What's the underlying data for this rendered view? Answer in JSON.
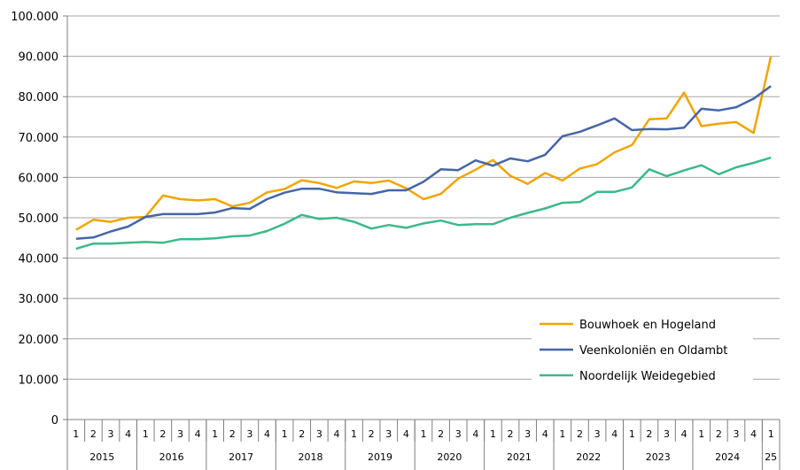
{
  "chart_data": {
    "type": "line",
    "title": "",
    "xlabel": "",
    "ylabel": "",
    "ylim": [
      0,
      100000
    ],
    "yticks": [
      "0",
      "10.000",
      "20.000",
      "30.000",
      "40.000",
      "50.000",
      "60.000",
      "70.000",
      "80.000",
      "90.000",
      "100.000"
    ],
    "grid": "horizontal",
    "legend_position": "bottom-right",
    "years": [
      {
        "label": "2015",
        "quarters": [
          "1",
          "2",
          "3",
          "4"
        ]
      },
      {
        "label": "2016",
        "quarters": [
          "1",
          "2",
          "3",
          "4"
        ]
      },
      {
        "label": "2017",
        "quarters": [
          "1",
          "2",
          "3",
          "4"
        ]
      },
      {
        "label": "2018",
        "quarters": [
          "1",
          "2",
          "3",
          "4"
        ]
      },
      {
        "label": "2019",
        "quarters": [
          "1",
          "2",
          "3",
          "4"
        ]
      },
      {
        "label": "2020",
        "quarters": [
          "1",
          "2",
          "3",
          "4"
        ]
      },
      {
        "label": "2021",
        "quarters": [
          "1",
          "2",
          "3",
          "4"
        ]
      },
      {
        "label": "2022",
        "quarters": [
          "1",
          "2",
          "3",
          "4"
        ]
      },
      {
        "label": "2023",
        "quarters": [
          "1",
          "2",
          "3",
          "4"
        ]
      },
      {
        "label": "2024",
        "quarters": [
          "1",
          "2",
          "3",
          "4"
        ]
      },
      {
        "label": "25",
        "quarters": [
          "1"
        ]
      }
    ],
    "series": [
      {
        "name": "Bouwhoek en Hogeland",
        "color": "#F0A500",
        "values": [
          47000,
          49500,
          49000,
          50000,
          50200,
          55500,
          54600,
          54300,
          54600,
          52800,
          53700,
          56300,
          57100,
          59300,
          58600,
          57400,
          59000,
          58600,
          59200,
          57300,
          54600,
          55900,
          59700,
          61900,
          64300,
          60400,
          58400,
          61100,
          59200,
          62200,
          63300,
          66200,
          68000,
          74400,
          74600,
          81000,
          72700,
          73300,
          73700,
          71000,
          90000
        ]
      },
      {
        "name": "Veenkoloniën en Oldambt",
        "color": "#4565A8",
        "values": [
          44800,
          45100,
          46600,
          47800,
          50200,
          50900,
          50900,
          50900,
          51300,
          52400,
          52200,
          54600,
          56200,
          57200,
          57200,
          56300,
          56100,
          55900,
          56800,
          56800,
          58900,
          62000,
          61800,
          64200,
          62900,
          64700,
          64000,
          65600,
          70200,
          71300,
          72900,
          74600,
          71700,
          72000,
          71900,
          72300,
          77000,
          76600,
          77400,
          79500,
          82600
        ]
      },
      {
        "name": "Noordelijk Weidegebied",
        "color": "#3CB98A",
        "values": [
          42300,
          43600,
          43600,
          43800,
          44000,
          43800,
          44700,
          44700,
          44900,
          45400,
          45600,
          46700,
          48500,
          50700,
          49700,
          50000,
          49000,
          47300,
          48200,
          47500,
          48600,
          49300,
          48200,
          48400,
          48400,
          50000,
          51200,
          52300,
          53700,
          53900,
          56400,
          56400,
          57500,
          62000,
          60300,
          61700,
          63000,
          60800,
          62500,
          63600,
          64900
        ]
      }
    ]
  }
}
